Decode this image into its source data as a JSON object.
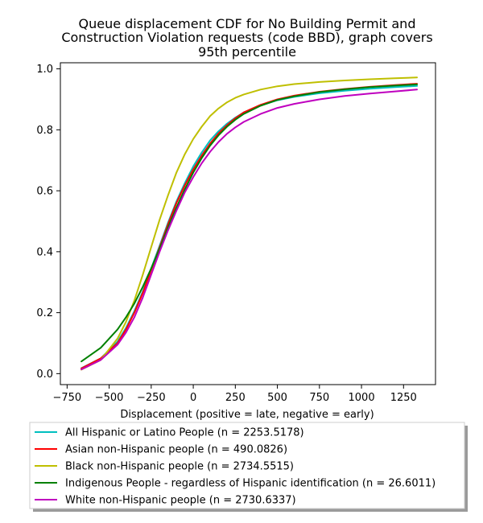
{
  "chart_data": {
    "type": "line",
    "title_lines": [
      "Queue displacement CDF for No Building Permit and",
      "Construction Violation  requests (code BBD), graph covers",
      "95th percentile"
    ],
    "xlabel": "Displacement (positive = late, negative = early)",
    "ylabel": "",
    "xlim": [
      -790,
      1440
    ],
    "ylim": [
      -0.036,
      1.02
    ],
    "xticks": [
      -750,
      -500,
      -250,
      0,
      250,
      500,
      750,
      1000,
      1250
    ],
    "xtick_labels": [
      "−750",
      "−500",
      "−250",
      "0",
      "250",
      "500",
      "750",
      "1000",
      "1250"
    ],
    "yticks": [
      0.0,
      0.2,
      0.4,
      0.6,
      0.8,
      1.0
    ],
    "ytick_labels": [
      "0.0",
      "0.2",
      "0.4",
      "0.6",
      "0.8",
      "1.0"
    ],
    "grid": false,
    "legend_position": "below plot",
    "series": [
      {
        "name": "All Hispanic or Latino People (n = 2253.5178)",
        "color": "#00bfbf",
        "x": [
          -665,
          -550,
          -450,
          -400,
          -350,
          -300,
          -250,
          -200,
          -150,
          -100,
          -50,
          0,
          50,
          100,
          150,
          200,
          250,
          300,
          400,
          500,
          600,
          750,
          900,
          1050,
          1200,
          1330
        ],
        "y": [
          0.018,
          0.05,
          0.105,
          0.15,
          0.205,
          0.27,
          0.345,
          0.42,
          0.495,
          0.565,
          0.625,
          0.68,
          0.725,
          0.765,
          0.795,
          0.82,
          0.84,
          0.857,
          0.88,
          0.897,
          0.908,
          0.92,
          0.928,
          0.935,
          0.94,
          0.944
        ]
      },
      {
        "name": "Asian non-Hispanic people (n = 490.0826)",
        "color": "#ff0000",
        "x": [
          -665,
          -550,
          -450,
          -400,
          -350,
          -300,
          -250,
          -200,
          -150,
          -100,
          -50,
          0,
          50,
          100,
          150,
          200,
          250,
          300,
          400,
          500,
          600,
          750,
          900,
          1050,
          1200,
          1330
        ],
        "y": [
          0.017,
          0.05,
          0.1,
          0.145,
          0.2,
          0.265,
          0.34,
          0.415,
          0.49,
          0.56,
          0.618,
          0.67,
          0.715,
          0.755,
          0.788,
          0.815,
          0.838,
          0.857,
          0.882,
          0.9,
          0.912,
          0.925,
          0.934,
          0.941,
          0.947,
          0.951
        ]
      },
      {
        "name": "Black non-Hispanic people (n = 2734.5515)",
        "color": "#bfbf00",
        "x": [
          -665,
          -550,
          -450,
          -400,
          -350,
          -300,
          -250,
          -200,
          -150,
          -100,
          -50,
          0,
          50,
          100,
          150,
          200,
          250,
          300,
          400,
          500,
          600,
          750,
          900,
          1050,
          1200,
          1330
        ],
        "y": [
          0.013,
          0.045,
          0.115,
          0.17,
          0.24,
          0.325,
          0.415,
          0.505,
          0.585,
          0.66,
          0.72,
          0.77,
          0.81,
          0.845,
          0.87,
          0.89,
          0.905,
          0.916,
          0.932,
          0.943,
          0.95,
          0.957,
          0.962,
          0.966,
          0.969,
          0.972
        ]
      },
      {
        "name": "Indigenous People - regardless of Hispanic identification (n = 26.6011)",
        "color": "#008000",
        "x": [
          -665,
          -550,
          -450,
          -400,
          -350,
          -300,
          -250,
          -200,
          -150,
          -100,
          -50,
          0,
          50,
          100,
          150,
          200,
          250,
          300,
          400,
          500,
          600,
          750,
          900,
          1050,
          1200,
          1330
        ],
        "y": [
          0.04,
          0.085,
          0.145,
          0.185,
          0.23,
          0.285,
          0.345,
          0.41,
          0.48,
          0.545,
          0.605,
          0.66,
          0.707,
          0.748,
          0.782,
          0.81,
          0.833,
          0.852,
          0.879,
          0.898,
          0.91,
          0.924,
          0.933,
          0.94,
          0.945,
          0.949
        ]
      },
      {
        "name": "White non-Hispanic people (n = 2730.6337)",
        "color": "#bf00bf",
        "x": [
          -665,
          -550,
          -450,
          -400,
          -350,
          -300,
          -250,
          -200,
          -150,
          -100,
          -50,
          0,
          50,
          100,
          150,
          200,
          250,
          300,
          400,
          500,
          600,
          750,
          900,
          1050,
          1200,
          1330
        ],
        "y": [
          0.014,
          0.045,
          0.095,
          0.135,
          0.185,
          0.25,
          0.325,
          0.4,
          0.47,
          0.535,
          0.595,
          0.645,
          0.69,
          0.728,
          0.76,
          0.787,
          0.808,
          0.826,
          0.852,
          0.872,
          0.885,
          0.9,
          0.911,
          0.919,
          0.926,
          0.932
        ]
      }
    ]
  }
}
